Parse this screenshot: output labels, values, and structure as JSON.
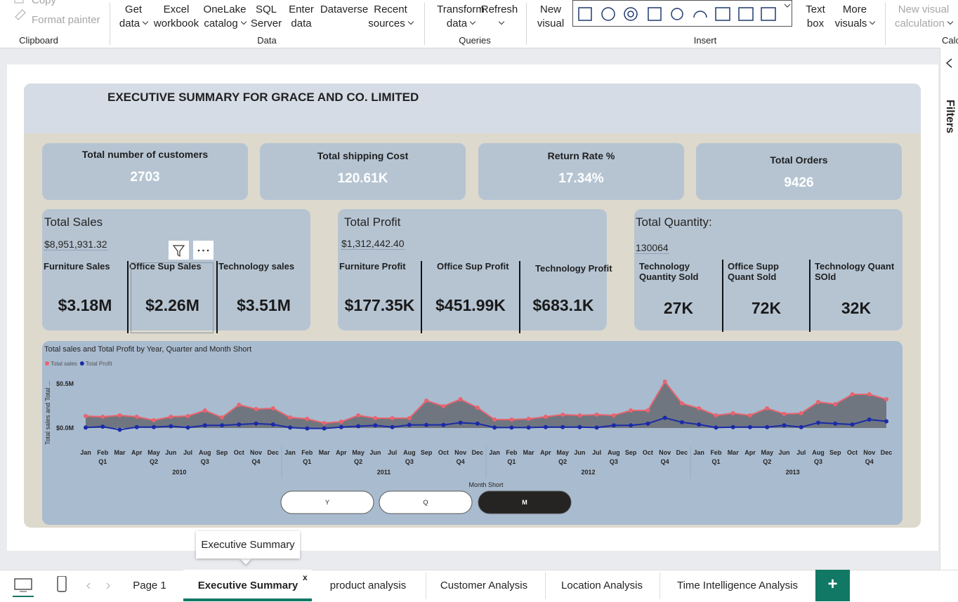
{
  "ribbon": {
    "groups": [
      {
        "label": "Clipboard",
        "buttons": [
          {
            "lines": [
              "Copy"
            ],
            "disabled": true
          },
          {
            "lines": [
              "Format painter"
            ],
            "disabled": true
          }
        ]
      },
      {
        "label": "Data",
        "buttons": [
          {
            "lines": [
              "Get",
              "data"
            ],
            "menu": true
          },
          {
            "lines": [
              "Excel",
              "workbook"
            ]
          },
          {
            "lines": [
              "OneLake",
              "catalog"
            ],
            "menu": true
          },
          {
            "lines": [
              "SQL",
              "Server"
            ]
          },
          {
            "lines": [
              "Enter",
              "data"
            ]
          },
          {
            "lines": [
              "Dataverse"
            ]
          },
          {
            "lines": [
              "Recent",
              "sources"
            ],
            "menu": true
          }
        ]
      },
      {
        "label": "Queries",
        "buttons": [
          {
            "lines": [
              "Transform",
              "data"
            ],
            "menu": true
          },
          {
            "lines": [
              "Refresh"
            ],
            "menu": true
          }
        ]
      },
      {
        "label": "Insert",
        "buttons": [
          {
            "lines": [
              "New",
              "visual"
            ]
          },
          {
            "lines": [
              "Text",
              "box"
            ]
          },
          {
            "lines": [
              "More",
              "visuals"
            ],
            "menu": true
          }
        ]
      },
      {
        "label": "Calc",
        "buttons": [
          {
            "lines": [
              "New visual",
              "calculation"
            ],
            "disabled": true,
            "menu": true
          }
        ]
      }
    ]
  },
  "filters_pane": "Filters",
  "report": {
    "title": "EXECUTIVE SUMMARY FOR GRACE AND CO. LIMITED",
    "kpis": [
      {
        "label": "Total number of customers",
        "value": 2703
      },
      {
        "label": "Total shipping Cost",
        "value": "120.61K"
      },
      {
        "label": "Return Rate %",
        "value": "17.34%"
      },
      {
        "label": "Total Orders",
        "value": 9426
      }
    ],
    "cards": [
      {
        "title": "Total Sales",
        "total": "$8,951,931.32",
        "items": [
          {
            "label": "Furniture Sales",
            "value": "$3.18M"
          },
          {
            "label": "Office Sup Sales",
            "value": "$2.26M"
          },
          {
            "label": "Technology sales",
            "value": "$3.51M"
          }
        ]
      },
      {
        "title": "Total Profit",
        "total": "$1,312,442.40",
        "items": [
          {
            "label": "Furniture Profit",
            "value": "$177.35K"
          },
          {
            "label": "Office Sup Profit",
            "value": "$451.99K"
          },
          {
            "label": "Technology Profit",
            "value": "$683.1K"
          }
        ]
      },
      {
        "title": "Total Quantity:",
        "total": 130064,
        "items": [
          {
            "label": "Technology Quantity Sold",
            "value": "27K"
          },
          {
            "label": "Office Supp Quant Sold",
            "value": "72K"
          },
          {
            "label": "Technology Quant SOld",
            "value": "32K"
          }
        ]
      }
    ]
  },
  "chart_data": {
    "type": "line",
    "title": "Total sales and Total Profit by Year, Quarter and Month Short",
    "y_label": "Total sales and Total ...",
    "x_label": "Month Short",
    "categories": [
      "Jan",
      "Feb",
      "Mar",
      "Apr",
      "May",
      "Jun",
      "Jul",
      "Aug",
      "Sep",
      "Oct",
      "Nov",
      "Dec",
      "Jan",
      "Feb",
      "Mar",
      "Apr",
      "May",
      "Jun",
      "Jul",
      "Aug",
      "Sep",
      "Oct",
      "Nov",
      "Dec",
      "Jan",
      "Feb",
      "Mar",
      "Apr",
      "May",
      "Jun",
      "Jul",
      "Aug",
      "Sep",
      "Oct",
      "Nov",
      "Dec",
      "Jan",
      "Feb",
      "Mar",
      "Apr",
      "May",
      "Jun",
      "Jul",
      "Aug",
      "Sep",
      "Oct",
      "Nov",
      "Dec"
    ],
    "quarters": [
      "Q1",
      "Q2",
      "Q3",
      "Q4",
      "Q1",
      "Q2",
      "Q3",
      "Q4",
      "Q1",
      "Q2",
      "Q3",
      "Q4",
      "Q1",
      "Q2",
      "Q3",
      "Q4"
    ],
    "years": [
      "2010",
      "2011",
      "2012",
      "2013"
    ],
    "series": [
      {
        "name": "Total sales",
        "color": "#e8646e",
        "area_color": "#6f7680",
        "values": [
          135000,
          127000,
          143000,
          127000,
          87000,
          127000,
          135000,
          198000,
          119000,
          262000,
          214000,
          222000,
          119000,
          103000,
          56000,
          71000,
          143000,
          111000,
          111000,
          111000,
          310000,
          246000,
          325000,
          230000,
          95000,
          95000,
          103000,
          127000,
          151000,
          143000,
          151000,
          143000,
          198000,
          198000,
          524000,
          278000,
          222000,
          143000,
          167000,
          143000,
          222000,
          159000,
          167000,
          294000,
          270000,
          381000,
          381000,
          325000
        ]
      },
      {
        "name": "Total Profit",
        "color": "#1a2aa8",
        "values": [
          5000,
          15000,
          -20000,
          10000,
          10000,
          20000,
          5000,
          30000,
          30000,
          40000,
          50000,
          40000,
          5000,
          -5000,
          -5000,
          10000,
          20000,
          30000,
          10000,
          35000,
          35000,
          35000,
          60000,
          50000,
          5000,
          5000,
          5000,
          10000,
          10000,
          10000,
          5000,
          30000,
          30000,
          50000,
          115000,
          65000,
          40000,
          5000,
          10000,
          10000,
          10000,
          30000,
          10000,
          60000,
          50000,
          40000,
          95000,
          75000
        ]
      }
    ],
    "ylim": [
      -100000,
      600000
    ],
    "yticks": [
      {
        "value": 0,
        "label": "$0.0M"
      },
      {
        "value": 500000,
        "label": "$0.5M"
      }
    ],
    "area": true,
    "buttons": [
      "Y",
      "Q",
      "M"
    ],
    "selected_button": "M"
  },
  "tabs": {
    "pages": [
      "Page 1",
      "Executive Summary",
      "product analysis",
      "Customer Analysis",
      "Location Analysis",
      "Time Intelligence Analysis"
    ],
    "active": 1,
    "tooltip": "Executive Summary",
    "close": "x",
    "add": "+"
  }
}
